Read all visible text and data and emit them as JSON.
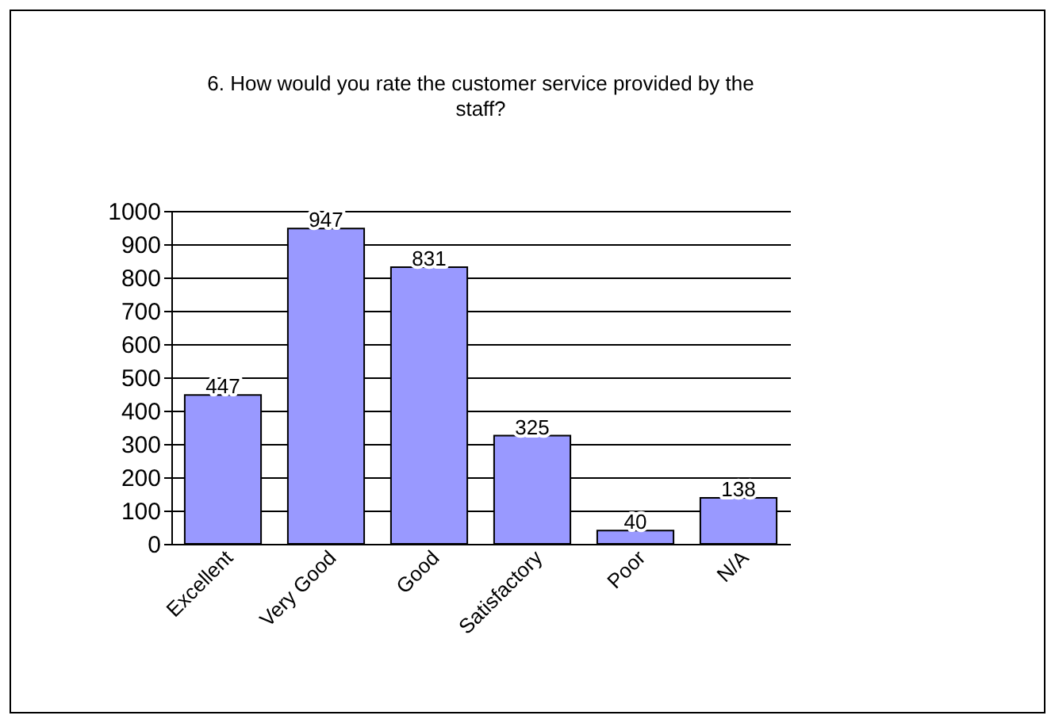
{
  "chart_data": {
    "type": "bar",
    "title": "6.  How would you rate the customer service provided by the staff?",
    "categories": [
      "Excellent",
      "Very Good",
      "Good",
      "Satisfactory",
      "Poor",
      "N/A"
    ],
    "values": [
      447,
      947,
      831,
      325,
      40,
      138
    ],
    "color": "#9999ff",
    "ylim": [
      0,
      1000
    ],
    "yticks": [
      0,
      100,
      200,
      300,
      400,
      500,
      600,
      700,
      800,
      900,
      1000
    ],
    "grid": "y",
    "data_labels": true
  }
}
